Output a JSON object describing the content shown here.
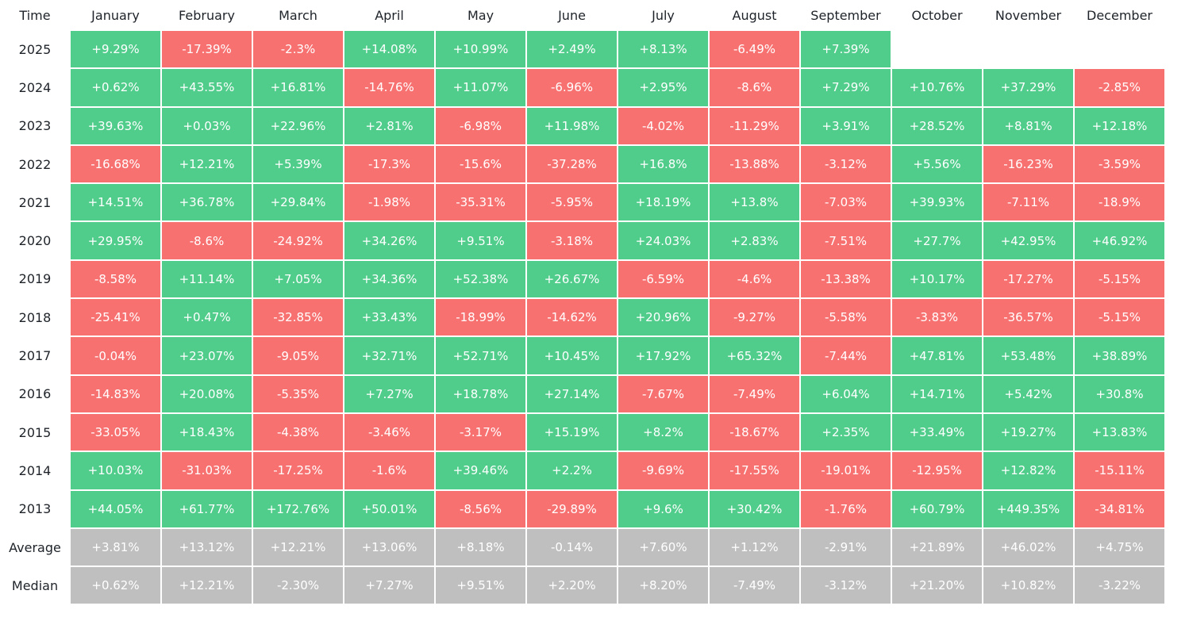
{
  "chart_data": {
    "type": "table",
    "title": "",
    "corner_label": "Time",
    "columns": [
      "January",
      "February",
      "March",
      "April",
      "May",
      "June",
      "July",
      "August",
      "September",
      "October",
      "November",
      "December"
    ],
    "rows": [
      {
        "label": "2025",
        "values": [
          "+9.29%",
          "-17.39%",
          "-2.3%",
          "+14.08%",
          "+10.99%",
          "+2.49%",
          "+8.13%",
          "-6.49%",
          "+7.39%",
          "",
          "",
          ""
        ]
      },
      {
        "label": "2024",
        "values": [
          "+0.62%",
          "+43.55%",
          "+16.81%",
          "-14.76%",
          "+11.07%",
          "-6.96%",
          "+2.95%",
          "-8.6%",
          "+7.29%",
          "+10.76%",
          "+37.29%",
          "-2.85%"
        ]
      },
      {
        "label": "2023",
        "values": [
          "+39.63%",
          "+0.03%",
          "+22.96%",
          "+2.81%",
          "-6.98%",
          "+11.98%",
          "-4.02%",
          "-11.29%",
          "+3.91%",
          "+28.52%",
          "+8.81%",
          "+12.18%"
        ]
      },
      {
        "label": "2022",
        "values": [
          "-16.68%",
          "+12.21%",
          "+5.39%",
          "-17.3%",
          "-15.6%",
          "-37.28%",
          "+16.8%",
          "-13.88%",
          "-3.12%",
          "+5.56%",
          "-16.23%",
          "-3.59%"
        ]
      },
      {
        "label": "2021",
        "values": [
          "+14.51%",
          "+36.78%",
          "+29.84%",
          "-1.98%",
          "-35.31%",
          "-5.95%",
          "+18.19%",
          "+13.8%",
          "-7.03%",
          "+39.93%",
          "-7.11%",
          "-18.9%"
        ]
      },
      {
        "label": "2020",
        "values": [
          "+29.95%",
          "-8.6%",
          "-24.92%",
          "+34.26%",
          "+9.51%",
          "-3.18%",
          "+24.03%",
          "+2.83%",
          "-7.51%",
          "+27.7%",
          "+42.95%",
          "+46.92%"
        ]
      },
      {
        "label": "2019",
        "values": [
          "-8.58%",
          "+11.14%",
          "+7.05%",
          "+34.36%",
          "+52.38%",
          "+26.67%",
          "-6.59%",
          "-4.6%",
          "-13.38%",
          "+10.17%",
          "-17.27%",
          "-5.15%"
        ]
      },
      {
        "label": "2018",
        "values": [
          "-25.41%",
          "+0.47%",
          "-32.85%",
          "+33.43%",
          "-18.99%",
          "-14.62%",
          "+20.96%",
          "-9.27%",
          "-5.58%",
          "-3.83%",
          "-36.57%",
          "-5.15%"
        ]
      },
      {
        "label": "2017",
        "values": [
          "-0.04%",
          "+23.07%",
          "-9.05%",
          "+32.71%",
          "+52.71%",
          "+10.45%",
          "+17.92%",
          "+65.32%",
          "-7.44%",
          "+47.81%",
          "+53.48%",
          "+38.89%"
        ]
      },
      {
        "label": "2016",
        "values": [
          "-14.83%",
          "+20.08%",
          "-5.35%",
          "+7.27%",
          "+18.78%",
          "+27.14%",
          "-7.67%",
          "-7.49%",
          "+6.04%",
          "+14.71%",
          "+5.42%",
          "+30.8%"
        ]
      },
      {
        "label": "2015",
        "values": [
          "-33.05%",
          "+18.43%",
          "-4.38%",
          "-3.46%",
          "-3.17%",
          "+15.19%",
          "+8.2%",
          "-18.67%",
          "+2.35%",
          "+33.49%",
          "+19.27%",
          "+13.83%"
        ]
      },
      {
        "label": "2014",
        "values": [
          "+10.03%",
          "-31.03%",
          "-17.25%",
          "-1.6%",
          "+39.46%",
          "+2.2%",
          "-9.69%",
          "-17.55%",
          "-19.01%",
          "-12.95%",
          "+12.82%",
          "-15.11%"
        ]
      },
      {
        "label": "2013",
        "values": [
          "+44.05%",
          "+61.77%",
          "+172.76%",
          "+50.01%",
          "-8.56%",
          "-29.89%",
          "+9.6%",
          "+30.42%",
          "-1.76%",
          "+60.79%",
          "+449.35%",
          "-34.81%"
        ]
      }
    ],
    "summary_rows": [
      {
        "label": "Average",
        "values": [
          "+3.81%",
          "+13.12%",
          "+12.21%",
          "+13.06%",
          "+8.18%",
          "-0.14%",
          "+7.60%",
          "+1.12%",
          "-2.91%",
          "+21.89%",
          "+46.02%",
          "+4.75%"
        ]
      },
      {
        "label": "Median",
        "values": [
          "+0.62%",
          "+12.21%",
          "-2.30%",
          "+7.27%",
          "+9.51%",
          "+2.20%",
          "+8.20%",
          "-7.49%",
          "-3.12%",
          "+21.20%",
          "+10.82%",
          "-3.22%"
        ]
      }
    ],
    "colors": {
      "positive": "#50cc8b",
      "negative": "#f87171",
      "summary": "#bfbfbf",
      "cell_text": "#ffffff",
      "label_text": "#1e2329"
    }
  }
}
